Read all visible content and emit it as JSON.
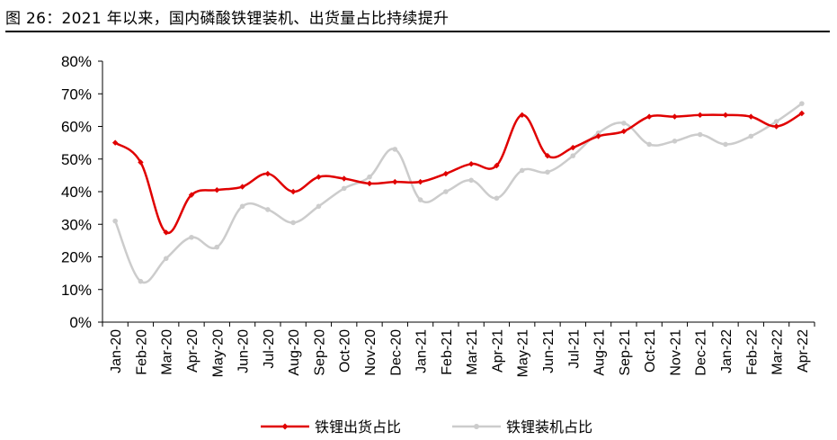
{
  "figure": {
    "title": "图 26：2021 年以来，国内磷酸铁锂装机、出货量占比持续提升"
  },
  "chart_data": {
    "type": "line",
    "title": "",
    "xlabel": "",
    "ylabel": "",
    "ylim": [
      0,
      80
    ],
    "yticks": [
      "0%",
      "10%",
      "20%",
      "30%",
      "40%",
      "50%",
      "60%",
      "70%",
      "80%"
    ],
    "grid": false,
    "legend_position": "bottom",
    "categories": [
      "Jan-20",
      "Feb-20",
      "Mar-20",
      "Apr-20",
      "May-20",
      "Jun-20",
      "Jul-20",
      "Aug-20",
      "Sep-20",
      "Oct-20",
      "Nov-20",
      "Dec-20",
      "Jan-21",
      "Feb-21",
      "Mar-21",
      "Apr-21",
      "May-21",
      "Jun-21",
      "Jul-21",
      "Aug-21",
      "Sep-21",
      "Oct-21",
      "Nov-21",
      "Dec-21",
      "Jan-22",
      "Feb-22",
      "Mar-22",
      "Apr-22"
    ],
    "series": [
      {
        "name": "铁锂出货占比",
        "color": "#e00000",
        "marker": "diamond",
        "values": [
          55,
          49,
          27.5,
          39,
          40.5,
          41.5,
          45.5,
          40,
          44.5,
          44,
          42.5,
          43,
          43,
          45.5,
          48.5,
          48,
          63.5,
          51,
          53.5,
          57,
          58.5,
          63,
          63,
          63.5,
          63.5,
          63,
          60,
          64
        ]
      },
      {
        "name": "铁锂装机占比",
        "color": "#cccccc",
        "marker": "circle",
        "values": [
          31,
          12.5,
          19.5,
          26,
          23,
          35.5,
          34.5,
          30.5,
          35.5,
          41,
          44.5,
          53,
          37.5,
          40,
          43.5,
          38,
          46.5,
          46,
          51,
          58,
          61,
          54.5,
          55.5,
          57.5,
          54.5,
          57,
          61.5,
          67
        ]
      }
    ]
  }
}
